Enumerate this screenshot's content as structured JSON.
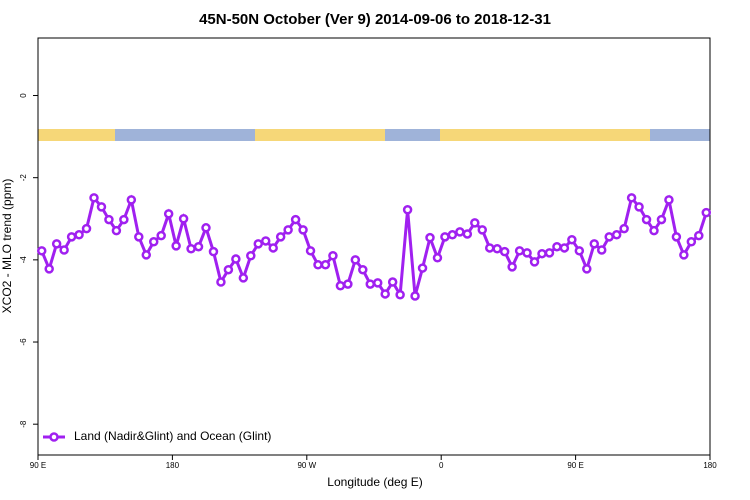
{
  "chart_data": {
    "type": "line",
    "title": "45N-50N October (Ver 9)   2014-09-06 to 2018-12-31",
    "x_label": "Longitude (deg E)",
    "y_label": "XCO2 - MLO trend (ppm)",
    "x": [
      92.5,
      97.5,
      102.5,
      107.5,
      112.5,
      117.5,
      122.5,
      127.5,
      132.5,
      137.5,
      142.5,
      147.5,
      152.5,
      157.5,
      162.5,
      167.5,
      172.5,
      177.5,
      182.5,
      187.5,
      192.5,
      197.5,
      202.5,
      207.5,
      212.5,
      217.5,
      222.5,
      227.5,
      232.5,
      237.5,
      242.5,
      247.5,
      252.5,
      257.5,
      262.5,
      267.5,
      272.5,
      277.5,
      282.5,
      287.5,
      292.5,
      297.5,
      302.5,
      307.5,
      312.5,
      317.5,
      322.5,
      327.5,
      332.5,
      337.5,
      342.5,
      347.5,
      352.5,
      357.5,
      362.5,
      367.5,
      372.5,
      377.5,
      382.5,
      387.5,
      392.5,
      397.5,
      402.5,
      407.5,
      412.5,
      417.5,
      422.5,
      427.5,
      432.5,
      437.5,
      442.5,
      447.5,
      452.5,
      457.5,
      462.5,
      467.5,
      472.5,
      477.5,
      482.5,
      487.5,
      492.5,
      497.5,
      502.5,
      507.5,
      512.5,
      517.5,
      522.5,
      527.5,
      532.5,
      537.5
    ],
    "series": [
      {
        "name": "Land (Nadir&Glint) and Ocean (Glint)",
        "color": "#a020f0",
        "values": [
          -3.78,
          -4.22,
          -3.61,
          -3.76,
          -3.44,
          -3.39,
          -3.24,
          -2.49,
          -2.71,
          -3.02,
          -3.29,
          -3.02,
          -2.54,
          -3.44,
          -3.88,
          -3.56,
          -3.41,
          -2.88,
          -3.66,
          -3.0,
          -3.73,
          -3.68,
          -3.22,
          -3.8,
          -4.54,
          -4.24,
          -3.98,
          -4.44,
          -3.9,
          -3.61,
          -3.54,
          -3.71,
          -3.44,
          -3.27,
          -3.02,
          -3.27,
          -3.78,
          -4.12,
          -4.12,
          -3.9,
          -4.63,
          -4.59,
          -4.0,
          -4.24,
          -4.59,
          -4.56,
          -4.83,
          -4.54,
          -4.85,
          -2.78,
          -4.88,
          -4.2,
          -3.46,
          -3.95,
          -3.44,
          -3.39,
          -3.32,
          -3.37,
          -3.1,
          -3.27,
          -3.71,
          -3.73,
          -3.8,
          -4.17,
          -3.78,
          -3.83,
          -4.05,
          -3.85,
          -3.83,
          -3.68,
          -3.71,
          -3.51,
          -3.78,
          -4.22,
          -3.61,
          -3.76,
          -3.44,
          -3.39,
          -3.24,
          -2.49,
          -2.71,
          -3.02,
          -3.29,
          -3.02,
          -2.54,
          -3.44,
          -3.88,
          -3.56,
          -3.41,
          -2.85
        ]
      }
    ],
    "xlim": [
      90,
      540
    ],
    "xticks": [
      {
        "value": 90,
        "label": "90 E"
      },
      180,
      {
        "value": 270,
        "label": "90 W"
      },
      {
        "value": 360,
        "label": "0"
      },
      {
        "value": 450,
        "label": "90 E"
      },
      {
        "value": 540,
        "label": "180"
      }
    ],
    "ylim": [
      -8.75,
      1.4
    ],
    "yticks": [
      0,
      -2,
      -4,
      -6,
      -8
    ],
    "legend": "bottom-left"
  }
}
